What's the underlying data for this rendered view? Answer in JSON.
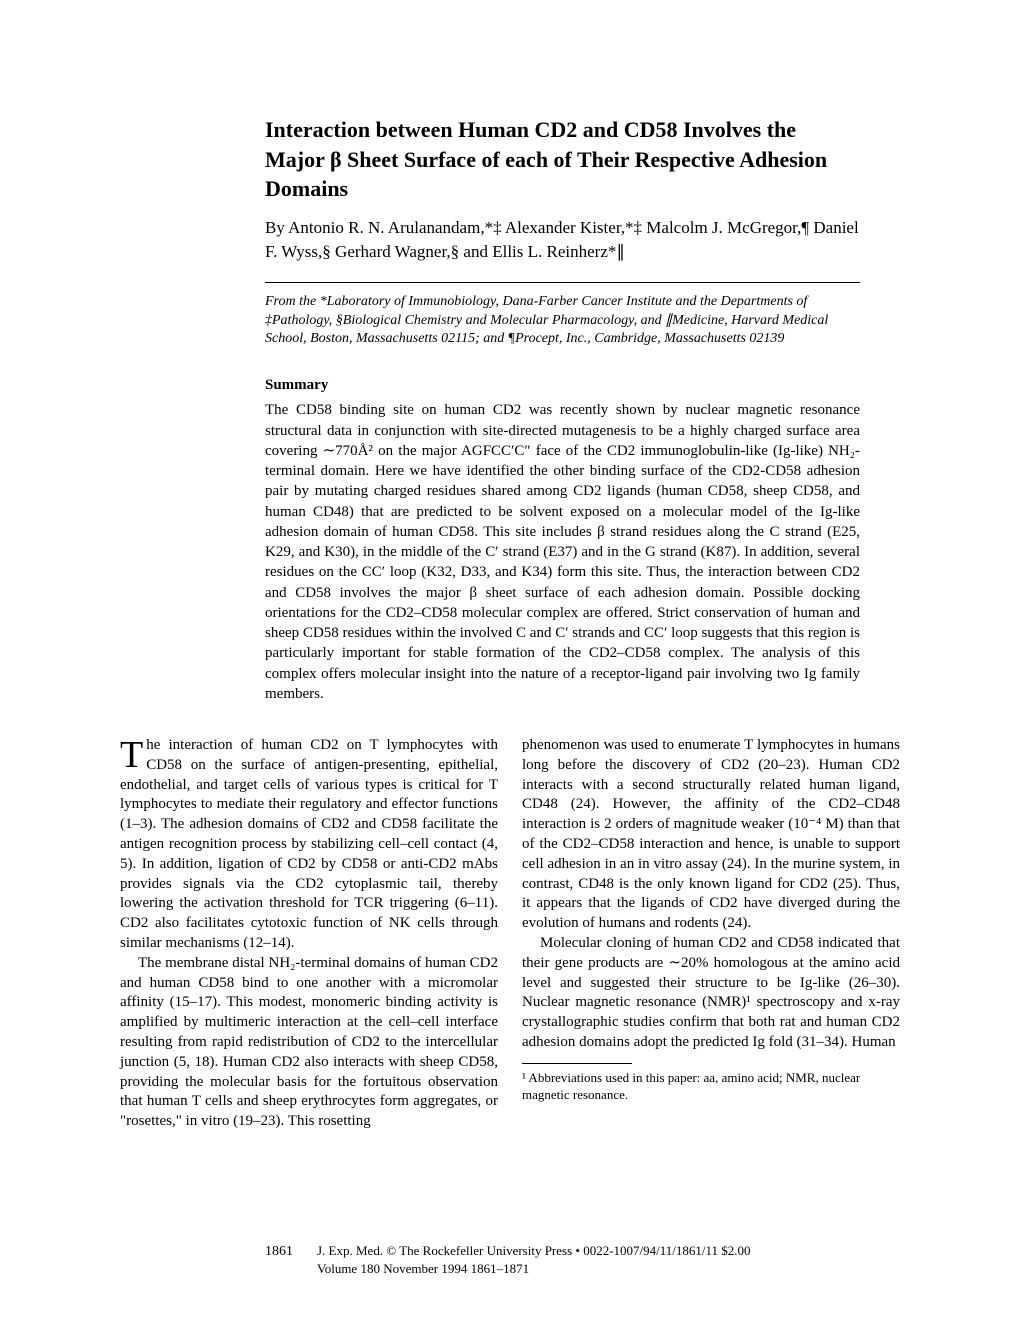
{
  "title": "Interaction between Human CD2 and CD58 Involves the Major β Sheet Surface of each of Their Respective Adhesion Domains",
  "authors": "By Antonio R. N. Arulanandam,*‡ Alexander Kister,*‡ Malcolm J. McGregor,¶ Daniel F. Wyss,§ Gerhard Wagner,§ and Ellis L. Reinherz*∥",
  "affiliations": "From the *Laboratory of Immunobiology, Dana-Farber Cancer Institute and the Departments of ‡Pathology, §Biological Chemistry and Molecular Pharmacology, and ∥Medicine, Harvard Medical School, Boston, Massachusetts 02115; and ¶Procept, Inc., Cambridge, Massachusetts 02139",
  "summary_heading": "Summary",
  "summary_text": "The CD58 binding site on human CD2 was recently shown by nuclear magnetic resonance structural data in conjunction with site-directed mutagenesis to be a highly charged surface area covering ∼770Å² on the major AGFCC′C″ face of the CD2 immunoglobulin-like (Ig-like) NH₂-terminal domain. Here we have identified the other binding surface of the CD2-CD58 adhesion pair by mutating charged residues shared among CD2 ligands (human CD58, sheep CD58, and human CD48) that are predicted to be solvent exposed on a molecular model of the Ig-like adhesion domain of human CD58. This site includes β strand residues along the C strand (E25, K29, and K30), in the middle of the C′ strand (E37) and in the G strand (K87). In addition, several residues on the CC′ loop (K32, D33, and K34) form this site. Thus, the interaction between CD2 and CD58 involves the major β sheet surface of each adhesion domain. Possible docking orientations for the CD2–CD58 molecular complex are offered. Strict conservation of human and sheep CD58 residues within the involved C and C′ strands and CC′ loop suggests that this region is particularly important for stable formation of the CD2–CD58 complex. The analysis of this complex offers molecular insight into the nature of a receptor-ligand pair involving two Ig family members.",
  "col1_p1": "he interaction of human CD2 on T lymphocytes with CD58 on the surface of antigen-presenting, epithelial, endothelial, and target cells of various types is critical for T lymphocytes to mediate their regulatory and effector functions (1–3). The adhesion domains of CD2 and CD58 facilitate the antigen recognition process by stabilizing cell–cell contact (4, 5). In addition, ligation of CD2 by CD58 or anti-CD2 mAbs provides signals via the CD2 cytoplasmic tail, thereby lowering the activation threshold for TCR triggering (6–11). CD2 also facilitates cytotoxic function of NK cells through similar mechanisms (12–14).",
  "col1_p2": "The membrane distal NH₂-terminal domains of human CD2 and human CD58 bind to one another with a micromolar affinity (15–17). This modest, monomeric binding activity is amplified by multimeric interaction at the cell–cell interface resulting from rapid redistribution of CD2 to the intercellular junction (5, 18). Human CD2 also interacts with sheep CD58, providing the molecular basis for the fortuitous observation that human T cells and sheep erythrocytes form aggregates, or \"rosettes,\" in vitro (19–23). This rosetting",
  "col2_p1": "phenomenon was used to enumerate T lymphocytes in humans long before the discovery of CD2 (20–23). Human CD2 interacts with a second structurally related human ligand, CD48 (24). However, the affinity of the CD2–CD48 interaction is 2 orders of magnitude weaker (10⁻⁴ M) than that of the CD2–CD58 interaction and hence, is unable to support cell adhesion in an in vitro assay (24). In the murine system, in contrast, CD48 is the only known ligand for CD2 (25). Thus, it appears that the ligands of CD2 have diverged during the evolution of humans and rodents (24).",
  "col2_p2": "Molecular cloning of human CD2 and CD58 indicated that their gene products are ∼20% homologous at the amino acid level and suggested their structure to be Ig-like (26–30). Nuclear magnetic resonance (NMR)¹ spectroscopy and x-ray crystallographic studies confirm that both rat and human CD2 adhesion domains adopt the predicted Ig fold (31–34). Human",
  "footnote": "¹ Abbreviations used in this paper: aa, amino acid; NMR, nuclear magnetic resonance.",
  "page_number": "1861",
  "footer_line1": "J. Exp. Med. © The Rockefeller University Press • 0022-1007/94/11/1861/11 $2.00",
  "footer_line2": "Volume 180   November 1994   1861–1871"
}
